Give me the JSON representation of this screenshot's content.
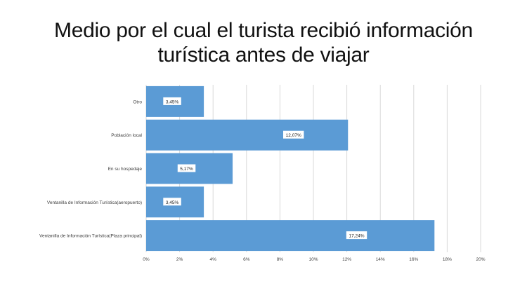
{
  "slide": {
    "title_line1": "Medio por el cual el turista recibió información",
    "title_line2": "turística antes de viajar"
  },
  "chart_data": {
    "type": "bar",
    "orientation": "horizontal",
    "title": "Medio por el cual el turista recibió información turística antes de viajar",
    "categories": [
      "Otro",
      "Población local",
      "En su hospedaje",
      "Ventanilla de Información Turística(aeropuerto)",
      "Ventanilla de Información Turística(Plaza principal)"
    ],
    "values": [
      3.45,
      12.07,
      5.17,
      3.45,
      17.24
    ],
    "data_labels": [
      "3,45%",
      "12,07%",
      "5,17%",
      "3,45%",
      "17,24%"
    ],
    "xlim": [
      0,
      20
    ],
    "x_ticks": [
      "0%",
      "2%",
      "4%",
      "6%",
      "8%",
      "10%",
      "12%",
      "14%",
      "16%",
      "18%",
      "20%"
    ],
    "grid": true,
    "legend": "none",
    "colors": {
      "bar": "#5B9BD5",
      "grid": "#D9D9D9",
      "label_box": "#FFFFFF"
    }
  }
}
